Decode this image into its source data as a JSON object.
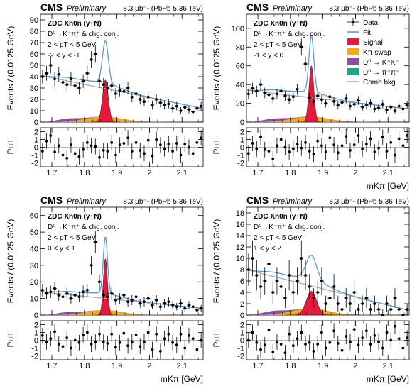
{
  "legend": [
    {
      "label": "Data",
      "kind": "data",
      "color": "#000000"
    },
    {
      "label": "Fit",
      "kind": "line",
      "color": "#5b9bd5"
    },
    {
      "label": "Signal",
      "kind": "fill",
      "color": "#e41a3c"
    },
    {
      "label": "Kπ swap",
      "kind": "fill",
      "color": "#f5a81c"
    },
    {
      "label": "D⁰ → K⁺K⁻",
      "kind": "fill",
      "color": "#8e4ea0"
    },
    {
      "label": "D⁰ → π⁺π⁻",
      "kind": "fill",
      "color": "#1ba784"
    },
    {
      "label": "Comb bkg",
      "kind": "line",
      "color": "#b0b0b0"
    }
  ],
  "chart_data": [
    {
      "type": "scatter",
      "cms_label": "CMS",
      "preliminary_label": "Preliminary",
      "lumi_label": "8.3 μb⁻¹ (PbPb 5.36 TeV)",
      "info": [
        "ZDC Xn0n (γ+N)",
        "D⁰→K⁻π⁺ & chg. conj.",
        "2 < pT < 5 GeV",
        "-2 < y < -1"
      ],
      "ylabel": "Events / (0.0125 GeV)",
      "pull_label": "Pull",
      "xlabel": "",
      "xlim": [
        1.665,
        2.165
      ],
      "ylim": [
        0,
        95
      ],
      "pull_ylim": [
        -2.5,
        2.5
      ],
      "x_ticks": [
        "1.7",
        "1.8",
        "1.9",
        "2",
        "2.1"
      ],
      "y_ticks": [
        "0",
        "10",
        "20",
        "30",
        "40",
        "50",
        "60",
        "70",
        "80",
        "90"
      ],
      "pull_ticks": [
        "-2",
        "-1",
        "0",
        "1",
        "2"
      ],
      "peak": 59,
      "comb_start": 41,
      "comb_end": 12,
      "signal_amp": 37,
      "signal_sigma": 0.009,
      "swap_amp": 5,
      "data_y": [
        40,
        43,
        50,
        38,
        42,
        35,
        33,
        38,
        32,
        30,
        36,
        43,
        55,
        60,
        36,
        33,
        30,
        32,
        25,
        28,
        27,
        30,
        22,
        25,
        20,
        18,
        22,
        15,
        20,
        17,
        15,
        16,
        12,
        14,
        10,
        13,
        11,
        9,
        12,
        14
      ],
      "pulls": [
        -0.5,
        0.8,
        1.5,
        -0.6,
        0.2,
        -1.0,
        -1.4,
        0.3,
        -0.8,
        -1.2,
        -0.3,
        0.6,
        0.2,
        0.1,
        -1.3,
        -0.4,
        -0.5,
        0.6,
        -1.0,
        0.3,
        0.5,
        1.2,
        -0.5,
        0.6,
        -0.4,
        -0.8,
        0.9,
        -1.1,
        1.0,
        0.3,
        -0.2,
        0.4,
        -0.5,
        0.5,
        -1.0,
        0.4,
        0.0,
        -0.8,
        0.6,
        1.2
      ],
      "show_legend": false
    },
    {
      "type": "scatter",
      "cms_label": "CMS",
      "preliminary_label": "Preliminary",
      "lumi_label": "8.3 μb⁻¹ (PbPb 5.36 TeV)",
      "info": [
        "ZDC Xn0n (γ+N)",
        "D⁰→K⁻π⁺ & chg. conj.",
        "2 < pT < 5 GeV",
        "-1 < y < 0"
      ],
      "ylabel": "Events / (0.0125 GeV)",
      "pull_label": "Pull",
      "xlabel": "mKπ [GeV]",
      "xlim": [
        1.665,
        2.165
      ],
      "ylim": [
        0,
        115
      ],
      "pull_ylim": [
        -2.5,
        2.5
      ],
      "x_ticks": [
        "1.7",
        "1.8",
        "1.9",
        "2",
        "2.1"
      ],
      "y_ticks": [
        "0",
        "20",
        "40",
        "60",
        "80",
        "100"
      ],
      "pull_ticks": [
        "-2",
        "-1",
        "0",
        "1",
        "2"
      ],
      "peak": 83,
      "comb_start": 34,
      "comb_end": 14,
      "signal_amp": 60,
      "signal_sigma": 0.0075,
      "swap_amp": 6,
      "data_y": [
        30,
        36,
        33,
        40,
        31,
        29,
        25,
        30,
        33,
        28,
        24,
        27,
        35,
        80,
        62,
        26,
        22,
        28,
        24,
        20,
        27,
        22,
        18,
        21,
        25,
        17,
        19,
        23,
        16,
        18,
        20,
        14,
        15,
        19,
        13,
        16,
        12,
        17,
        14,
        18
      ],
      "pulls": [
        -0.8,
        0.5,
        -0.2,
        1.3,
        -0.3,
        -0.5,
        -1.5,
        0.2,
        1.0,
        0.0,
        -0.6,
        -0.2,
        0.4,
        -0.1,
        0.6,
        -0.5,
        -0.9,
        0.8,
        0.2,
        -0.6,
        1.2,
        0.3,
        -0.7,
        0.2,
        1.4,
        -0.4,
        0.3,
        1.5,
        -0.2,
        0.4,
        1.1,
        -0.6,
        -0.1,
        1.3,
        -0.5,
        0.6,
        -1.0,
        1.1,
        0.2,
        1.5
      ],
      "show_legend": true
    },
    {
      "type": "scatter",
      "cms_label": "CMS",
      "preliminary_label": "Preliminary",
      "lumi_label": "8.3 μb⁻¹ (PbPb 5.36 TeV)",
      "info": [
        "ZDC Xn0n (γ+N)",
        "D⁰→K⁻π⁺ & chg. conj.",
        "2 < pT < 5 GeV",
        "0 < y < 1"
      ],
      "ylabel": "Events / (0.0125 GeV)",
      "pull_label": "Pull",
      "xlabel": "mKπ [GeV]",
      "xlim": [
        1.665,
        2.165
      ],
      "ylim": [
        0,
        65
      ],
      "pull_ylim": [
        -2.5,
        2.5
      ],
      "x_ticks": [
        "1.7",
        "1.8",
        "1.9",
        "2",
        "2.1"
      ],
      "y_ticks": [
        "0",
        "10",
        "20",
        "30",
        "40",
        "50",
        "60"
      ],
      "pull_ticks": [
        "-2",
        "-1",
        "0",
        "1",
        "2"
      ],
      "peak": 45,
      "comb_start": 14,
      "comb_end": 4,
      "signal_amp": 34,
      "signal_sigma": 0.0065,
      "swap_amp": 3,
      "data_y": [
        15,
        13,
        14,
        16,
        12,
        11,
        13,
        10,
        12,
        11,
        14,
        15,
        30,
        44,
        20,
        12,
        11,
        13,
        9,
        10,
        12,
        8,
        9,
        11,
        7,
        8,
        10,
        6,
        9,
        5,
        7,
        8,
        6,
        5,
        7,
        4,
        6,
        5,
        3,
        4
      ],
      "pulls": [
        0.6,
        -0.2,
        0.2,
        1.1,
        -0.5,
        -0.8,
        0.3,
        -1.0,
        0.0,
        -0.3,
        0.7,
        1.0,
        -0.5,
        -0.2,
        0.8,
        -0.2,
        -0.4,
        0.8,
        -0.9,
        -0.3,
        0.9,
        -0.7,
        -0.2,
        0.7,
        -0.8,
        -0.2,
        1.0,
        -1.2,
        0.8,
        -1.4,
        0.2,
        0.8,
        -0.3,
        -0.6,
        0.8,
        -1.0,
        0.6,
        0.2,
        -1.2,
        0.0
      ],
      "show_legend": false
    },
    {
      "type": "scatter",
      "cms_label": "CMS",
      "preliminary_label": "Preliminary",
      "lumi_label": "8.3 μb⁻¹ (PbPb 5.36 TeV)",
      "info": [
        "ZDC Xn0n (γ+N)",
        "D⁰→K⁻π⁺ & chg. conj.",
        "2 < pT < 5 GeV",
        "1 < y < 2"
      ],
      "ylabel": "Events / (0.0125 GeV)",
      "pull_label": "Pull",
      "xlabel": "mKπ [GeV]",
      "xlim": [
        1.665,
        2.165
      ],
      "ylim": [
        0,
        19
      ],
      "pull_ylim": [
        -2.5,
        2.5
      ],
      "x_ticks": [
        "1.7",
        "1.8",
        "1.9",
        "2",
        "2.1"
      ],
      "y_ticks": [
        "0",
        "2",
        "4",
        "6",
        "8",
        "10",
        "12",
        "14",
        "16",
        "18"
      ],
      "pull_ticks": [
        "-2",
        "-1",
        "0",
        "1",
        "2"
      ],
      "peak": 8,
      "comb_start": 8,
      "comb_end": 0.8,
      "signal_amp": 4.2,
      "signal_sigma": 0.016,
      "swap_amp": 1.2,
      "data_y": [
        8,
        10,
        7,
        5,
        6,
        9,
        4,
        6,
        5,
        3,
        7,
        4,
        6,
        10,
        7,
        5,
        3,
        4,
        6,
        2,
        3,
        5,
        2,
        1,
        3,
        2,
        4,
        1,
        2,
        3,
        1,
        2,
        1,
        0,
        2,
        1,
        3,
        1,
        0,
        1
      ],
      "pulls": [
        0.0,
        1.0,
        -0.3,
        -1.2,
        -0.6,
        1.3,
        -1.5,
        -0.2,
        -0.5,
        -1.6,
        0.8,
        -0.7,
        0.2,
        1.0,
        -0.5,
        -0.3,
        -1.4,
        -0.5,
        1.0,
        -1.0,
        -0.3,
        1.2,
        -0.4,
        -1.3,
        0.5,
        -0.2,
        1.4,
        -0.6,
        0.3,
        1.2,
        -0.5,
        0.6,
        -0.2,
        -1.0,
        1.0,
        0.0,
        1.8,
        0.2,
        -1.0,
        0.3
      ],
      "show_legend": false
    }
  ]
}
